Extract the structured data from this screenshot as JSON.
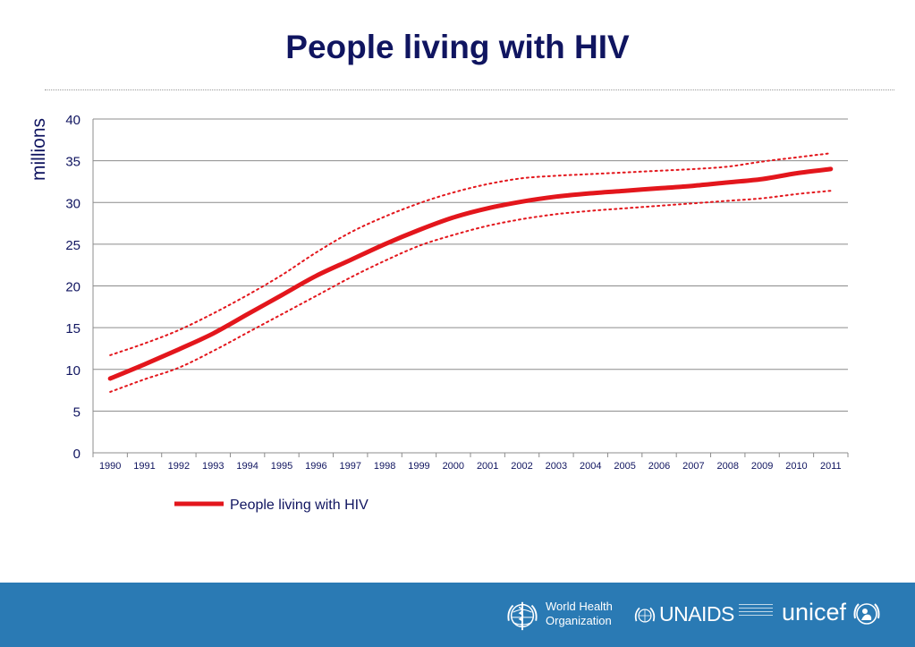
{
  "slide": {
    "title": "People living with HIV"
  },
  "chart_data": {
    "type": "line",
    "title": "",
    "xlabel": "",
    "ylabel": "millions",
    "categories": [
      "1990",
      "1991",
      "1992",
      "1993",
      "1994",
      "1995",
      "1996",
      "1997",
      "1998",
      "1999",
      "2000",
      "2001",
      "2002",
      "2003",
      "2004",
      "2005",
      "2006",
      "2007",
      "2008",
      "2009",
      "2010",
      "2011"
    ],
    "ylim": [
      0,
      40
    ],
    "yticks": [
      0,
      5,
      10,
      15,
      20,
      25,
      30,
      35,
      40
    ],
    "grid": true,
    "legend_position": "bottom-left",
    "series": [
      {
        "name": "People living with HIV",
        "role": "estimate",
        "style": "solid",
        "color": "#e3161c",
        "values": [
          8.9,
          10.6,
          12.4,
          14.3,
          16.6,
          18.9,
          21.2,
          23.1,
          25.0,
          26.7,
          28.2,
          29.3,
          30.1,
          30.7,
          31.1,
          31.4,
          31.7,
          32.0,
          32.4,
          32.8,
          33.5,
          34.0
        ]
      },
      {
        "role": "upper bound",
        "style": "dotted",
        "color": "#e3161c",
        "values": [
          11.7,
          13.1,
          14.7,
          16.7,
          18.9,
          21.3,
          24.0,
          26.4,
          28.3,
          29.9,
          31.2,
          32.2,
          32.9,
          33.2,
          33.4,
          33.6,
          33.8,
          34.0,
          34.3,
          34.9,
          35.4,
          35.9
        ]
      },
      {
        "role": "lower bound",
        "style": "dotted",
        "color": "#e3161c",
        "values": [
          7.3,
          8.8,
          10.2,
          12.2,
          14.4,
          16.6,
          18.8,
          21.0,
          23.0,
          24.8,
          26.1,
          27.2,
          28.0,
          28.6,
          29.0,
          29.3,
          29.6,
          29.9,
          30.2,
          30.5,
          31.0,
          31.4
        ]
      }
    ]
  },
  "footer": {
    "background": "#2a7ab4",
    "logos": {
      "who": {
        "line1": "World Health",
        "line2": "Organization",
        "icon": "who-emblem-icon"
      },
      "unaids": {
        "text": "UNAIDS",
        "icon": "un-emblem-icon"
      },
      "unicef": {
        "text": "unicef",
        "icon": "unicef-emblem-icon"
      }
    }
  }
}
